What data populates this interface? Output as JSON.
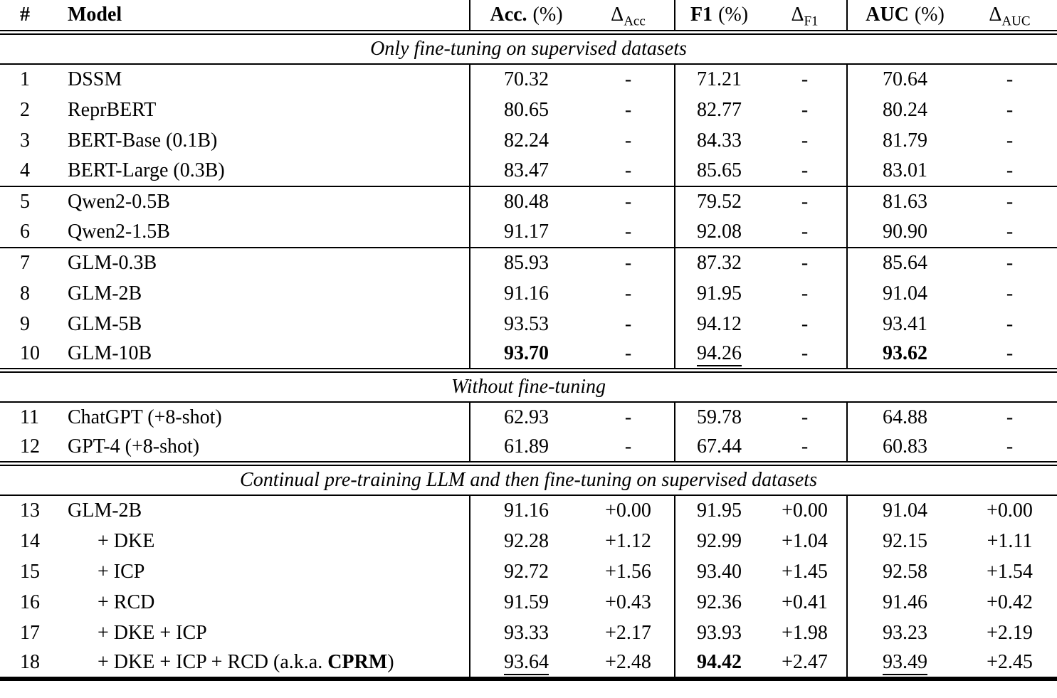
{
  "header": {
    "num": "#",
    "model": "Model",
    "acc_main": "Acc.",
    "acc_unit": "(%)",
    "delta_symbol": "Δ",
    "delta_acc_sub": "Acc",
    "f1_main": "F1",
    "f1_unit": "(%)",
    "delta_f1_sub": "F1",
    "auc_main": "AUC",
    "auc_unit": "(%)",
    "delta_auc_sub": "AUC"
  },
  "sections": [
    {
      "title": "Only fine-tuning on supervised datasets",
      "groups": [
        {
          "after": "single",
          "rows": [
            {
              "num": "1",
              "model": [
                {
                  "t": "DSSM"
                }
              ],
              "cells": [
                {
                  "t": "70.32"
                },
                {
                  "t": "-"
                },
                {
                  "t": "71.21"
                },
                {
                  "t": "-"
                },
                {
                  "t": "70.64"
                },
                {
                  "t": "-"
                }
              ]
            },
            {
              "num": "2",
              "model": [
                {
                  "t": "ReprBERT"
                }
              ],
              "cells": [
                {
                  "t": "80.65"
                },
                {
                  "t": "-"
                },
                {
                  "t": "82.77"
                },
                {
                  "t": "-"
                },
                {
                  "t": "80.24"
                },
                {
                  "t": "-"
                }
              ]
            },
            {
              "num": "3",
              "model": [
                {
                  "t": "BERT-Base (0.1B)"
                }
              ],
              "cells": [
                {
                  "t": "82.24"
                },
                {
                  "t": "-"
                },
                {
                  "t": "84.33"
                },
                {
                  "t": "-"
                },
                {
                  "t": "81.79"
                },
                {
                  "t": "-"
                }
              ]
            },
            {
              "num": "4",
              "model": [
                {
                  "t": "BERT-Large (0.3B)"
                }
              ],
              "cells": [
                {
                  "t": "83.47"
                },
                {
                  "t": "-"
                },
                {
                  "t": "85.65"
                },
                {
                  "t": "-"
                },
                {
                  "t": "83.01"
                },
                {
                  "t": "-"
                }
              ]
            }
          ]
        },
        {
          "after": "single",
          "rows": [
            {
              "num": "5",
              "model": [
                {
                  "t": "Qwen2-0.5B"
                }
              ],
              "cells": [
                {
                  "t": "80.48"
                },
                {
                  "t": "-"
                },
                {
                  "t": "79.52"
                },
                {
                  "t": "-"
                },
                {
                  "t": "81.63"
                },
                {
                  "t": "-"
                }
              ]
            },
            {
              "num": "6",
              "model": [
                {
                  "t": "Qwen2-1.5B"
                }
              ],
              "cells": [
                {
                  "t": "91.17"
                },
                {
                  "t": "-"
                },
                {
                  "t": "92.08"
                },
                {
                  "t": "-"
                },
                {
                  "t": "90.90"
                },
                {
                  "t": "-"
                }
              ]
            }
          ]
        },
        {
          "after": "double",
          "rows": [
            {
              "num": "7",
              "model": [
                {
                  "t": "GLM-0.3B"
                }
              ],
              "cells": [
                {
                  "t": "85.93"
                },
                {
                  "t": "-"
                },
                {
                  "t": "87.32"
                },
                {
                  "t": "-"
                },
                {
                  "t": "85.64"
                },
                {
                  "t": "-"
                }
              ]
            },
            {
              "num": "8",
              "model": [
                {
                  "t": "GLM-2B"
                }
              ],
              "cells": [
                {
                  "t": "91.16"
                },
                {
                  "t": "-"
                },
                {
                  "t": "91.95"
                },
                {
                  "t": "-"
                },
                {
                  "t": "91.04"
                },
                {
                  "t": "-"
                }
              ]
            },
            {
              "num": "9",
              "model": [
                {
                  "t": "GLM-5B"
                }
              ],
              "cells": [
                {
                  "t": "93.53"
                },
                {
                  "t": "-"
                },
                {
                  "t": "94.12"
                },
                {
                  "t": "-"
                },
                {
                  "t": "93.41"
                },
                {
                  "t": "-"
                }
              ]
            },
            {
              "num": "10",
              "model": [
                {
                  "t": "GLM-10B"
                }
              ],
              "cells": [
                {
                  "t": "93.70",
                  "b": true
                },
                {
                  "t": "-"
                },
                {
                  "t": "94.26",
                  "u": true
                },
                {
                  "t": "-"
                },
                {
                  "t": "93.62",
                  "b": true
                },
                {
                  "t": "-"
                }
              ]
            }
          ]
        }
      ]
    },
    {
      "title": "Without fine-tuning",
      "groups": [
        {
          "after": "double",
          "rows": [
            {
              "num": "11",
              "model": [
                {
                  "t": "ChatGPT (+8-shot)"
                }
              ],
              "cells": [
                {
                  "t": "62.93"
                },
                {
                  "t": "-"
                },
                {
                  "t": "59.78"
                },
                {
                  "t": "-"
                },
                {
                  "t": "64.88"
                },
                {
                  "t": "-"
                }
              ]
            },
            {
              "num": "12",
              "model": [
                {
                  "t": "GPT-4 (+8-shot)"
                }
              ],
              "cells": [
                {
                  "t": "61.89"
                },
                {
                  "t": "-"
                },
                {
                  "t": "67.44"
                },
                {
                  "t": "-"
                },
                {
                  "t": "60.83"
                },
                {
                  "t": "-"
                }
              ]
            }
          ]
        }
      ]
    },
    {
      "title": "Continual pre-training LLM and then fine-tuning on supervised datasets",
      "groups": [
        {
          "after": "thick",
          "rows": [
            {
              "num": "13",
              "model": [
                {
                  "t": "GLM-2B"
                }
              ],
              "cells": [
                {
                  "t": "91.16"
                },
                {
                  "t": "+0.00"
                },
                {
                  "t": "91.95"
                },
                {
                  "t": "+0.00"
                },
                {
                  "t": "91.04"
                },
                {
                  "t": "+0.00"
                }
              ]
            },
            {
              "num": "14",
              "indent": true,
              "model": [
                {
                  "t": "+ DKE"
                }
              ],
              "cells": [
                {
                  "t": "92.28"
                },
                {
                  "t": "+1.12"
                },
                {
                  "t": "92.99"
                },
                {
                  "t": "+1.04"
                },
                {
                  "t": "92.15"
                },
                {
                  "t": "+1.11"
                }
              ]
            },
            {
              "num": "15",
              "indent": true,
              "model": [
                {
                  "t": "+ ICP"
                }
              ],
              "cells": [
                {
                  "t": "92.72"
                },
                {
                  "t": "+1.56"
                },
                {
                  "t": "93.40"
                },
                {
                  "t": "+1.45"
                },
                {
                  "t": "92.58"
                },
                {
                  "t": "+1.54"
                }
              ]
            },
            {
              "num": "16",
              "indent": true,
              "model": [
                {
                  "t": "+ RCD"
                }
              ],
              "cells": [
                {
                  "t": "91.59"
                },
                {
                  "t": "+0.43"
                },
                {
                  "t": "92.36"
                },
                {
                  "t": "+0.41"
                },
                {
                  "t": "91.46"
                },
                {
                  "t": "+0.42"
                }
              ]
            },
            {
              "num": "17",
              "indent": true,
              "model": [
                {
                  "t": "+ DKE + ICP"
                }
              ],
              "cells": [
                {
                  "t": "93.33"
                },
                {
                  "t": "+2.17"
                },
                {
                  "t": "93.93"
                },
                {
                  "t": "+1.98"
                },
                {
                  "t": "93.23"
                },
                {
                  "t": "+2.19"
                }
              ]
            },
            {
              "num": "18",
              "indent": true,
              "model": [
                {
                  "t": "+ DKE + ICP + RCD (a.k.a. "
                },
                {
                  "t": "CPRM",
                  "b": true
                },
                {
                  "t": ")"
                }
              ],
              "cells": [
                {
                  "t": "93.64",
                  "u": true
                },
                {
                  "t": "+2.48"
                },
                {
                  "t": "94.42",
                  "b": true
                },
                {
                  "t": "+2.47"
                },
                {
                  "t": "93.49",
                  "u": true
                },
                {
                  "t": "+2.45"
                }
              ]
            }
          ]
        }
      ]
    }
  ]
}
